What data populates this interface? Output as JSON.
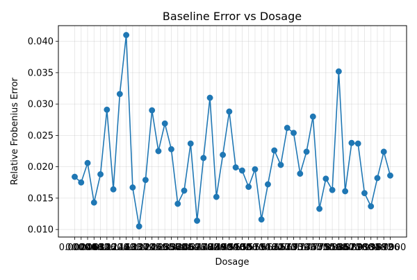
{
  "chart_data": {
    "type": "line",
    "title": "Baseline Error vs Dosage",
    "xlabel": "Dosage",
    "ylabel": "Relative Frobenius Error",
    "ylim": [
      0.0088,
      0.0425
    ],
    "grid": true,
    "marker": "circle",
    "color": "#1f77b4",
    "yticks": [
      "0.010",
      "0.015",
      "0.020",
      "0.025",
      "0.030",
      "0.035",
      "0.040"
    ],
    "x_tick_labels": [
      "0.0000",
      "0.0204",
      "0.0408",
      "0.0612",
      "0.0816",
      "0.1020",
      "0.1224",
      "0.1429",
      "0.1633",
      "0.1837",
      "0.2041",
      "0.2245",
      "0.2449",
      "0.2653",
      "0.2857",
      "0.3061",
      "0.3265",
      "0.3469",
      "0.3673",
      "0.3878",
      "0.4082",
      "0.4286",
      "0.4490",
      "0.4694",
      "0.4898",
      "0.5102",
      "0.5306",
      "0.5510",
      "0.5714",
      "0.5918",
      "0.6122",
      "0.6327",
      "0.6531",
      "0.6735",
      "0.6939",
      "0.7143",
      "0.7347",
      "0.7551",
      "0.7755",
      "0.7959",
      "0.8163",
      "0.8367",
      "0.8571",
      "0.8776",
      "0.8980",
      "0.9184",
      "0.9388",
      "0.9592",
      "0.9796",
      "1.0000"
    ],
    "values": [
      0.0184,
      0.0175,
      0.0206,
      0.0143,
      0.0188,
      0.0291,
      0.0164,
      0.0316,
      0.041,
      0.0167,
      0.0105,
      0.0179,
      0.029,
      0.0225,
      0.0269,
      0.0228,
      0.0141,
      0.0162,
      0.0237,
      0.0114,
      0.0214,
      0.031,
      0.0152,
      0.0219,
      0.0288,
      0.0199,
      0.0194,
      0.0168,
      0.0196,
      0.0116,
      0.0172,
      0.0226,
      0.0203,
      0.0262,
      0.0254,
      0.0189,
      0.0224,
      0.028,
      0.0133,
      0.0181,
      0.0163,
      0.0352,
      0.0161,
      0.0238,
      0.0237,
      0.0158,
      0.0137,
      0.0182,
      0.0224,
      0.0186
    ]
  }
}
